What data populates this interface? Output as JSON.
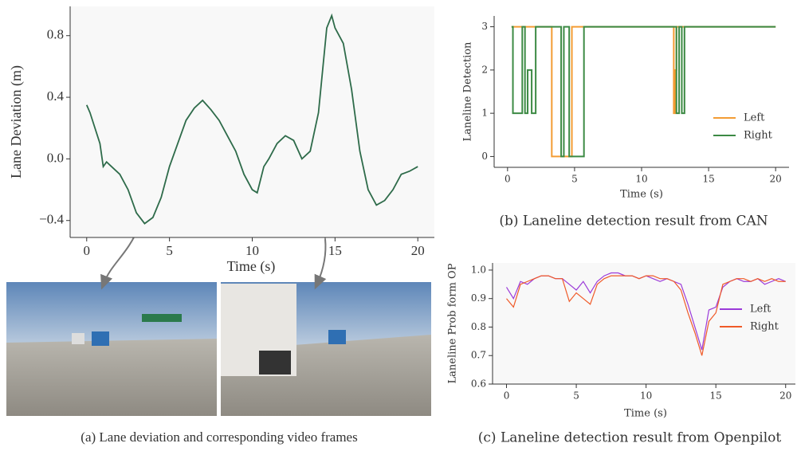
{
  "chart_data": [
    {
      "type": "line",
      "xlabel": "Time (s)",
      "ylabel": "Lane Deviation (m)",
      "caption": "(a) Lane deviation and corresponding video frames",
      "x": [
        0,
        0.2,
        0.5,
        0.8,
        1,
        1.2,
        1.5,
        2,
        2.5,
        3,
        3.5,
        4,
        4.5,
        5,
        5.5,
        6,
        6.5,
        7,
        7.5,
        8,
        8.5,
        9,
        9.5,
        10,
        10.3,
        10.7,
        11,
        11.5,
        12,
        12.5,
        13,
        13.5,
        14,
        14.5,
        14.8,
        15,
        15.5,
        16,
        16.5,
        17,
        17.5,
        18,
        18.5,
        19,
        19.5,
        20
      ],
      "series": [
        {
          "color": "#2e6b4a",
          "values": [
            0.35,
            0.3,
            0.2,
            0.1,
            -0.05,
            -0.02,
            -0.05,
            -0.1,
            -0.2,
            -0.35,
            -0.42,
            -0.38,
            -0.25,
            -0.05,
            0.1,
            0.25,
            0.33,
            0.38,
            0.32,
            0.25,
            0.15,
            0.05,
            -0.1,
            -0.2,
            -0.22,
            -0.05,
            0.0,
            0.1,
            0.15,
            0.12,
            0.0,
            0.05,
            0.3,
            0.85,
            0.93,
            0.85,
            0.75,
            0.45,
            0.05,
            -0.2,
            -0.3,
            -0.27,
            -0.2,
            -0.1,
            -0.08,
            -0.05
          ]
        }
      ],
      "xlim": [
        -1,
        21
      ],
      "ylim": [
        -0.51,
        0.99
      ],
      "xticks": [
        0,
        5,
        10,
        15,
        20
      ],
      "yticks": [
        {
          "value": -0.4,
          "label": "−0.4"
        },
        {
          "value": 0,
          "label": "0.0"
        },
        0.4,
        0.8
      ],
      "background": "#f8f8f8"
    },
    {
      "type": "step",
      "xlabel": "Time (s)",
      "ylabel": "Laneline Detection",
      "caption": "(b) Laneline detection result from CAN",
      "series": [
        {
          "name": "Left",
          "color": "#f39c34",
          "x": [
            0.3,
            3.3,
            4.8,
            12.4,
            12.5,
            12.6,
            20
          ],
          "values": [
            3,
            0,
            3,
            1,
            2,
            3,
            3
          ]
        },
        {
          "name": "Right",
          "color": "#3c8a44",
          "x": [
            0.3,
            0.4,
            1.1,
            1.3,
            1.5,
            1.8,
            2.1,
            4.0,
            4.2,
            4.6,
            5.7,
            12.6,
            12.8,
            13.0,
            13.2,
            20
          ],
          "values": [
            3,
            1,
            3,
            1,
            2,
            1,
            3,
            0,
            3,
            0,
            3,
            1,
            3,
            1,
            3,
            3
          ]
        }
      ],
      "xlim": [
        -1,
        21
      ],
      "ylim": [
        -0.25,
        3.25
      ],
      "xticks": [
        0,
        5,
        10,
        15,
        20
      ],
      "yticks": [
        0,
        1,
        2,
        3
      ],
      "legend": "lower right",
      "background": "#ffffff"
    },
    {
      "type": "line",
      "xlabel": "Time (s)",
      "ylabel": "Laneline Prob form OP",
      "caption": "(c) Laneline detection result from Openpilot",
      "x": [
        0,
        0.5,
        1,
        1.5,
        2,
        2.5,
        3,
        3.5,
        4,
        4.5,
        5,
        5.5,
        6,
        6.5,
        7,
        7.5,
        8,
        8.5,
        9,
        9.5,
        10,
        10.5,
        11,
        11.5,
        12,
        12.5,
        13,
        13.5,
        14,
        14.5,
        15,
        15.5,
        16,
        16.5,
        17,
        17.5,
        18,
        18.5,
        19,
        19.5,
        20
      ],
      "series": [
        {
          "name": "Left",
          "color": "#9b3ad9",
          "values": [
            0.94,
            0.9,
            0.96,
            0.95,
            0.97,
            0.98,
            0.98,
            0.97,
            0.97,
            0.95,
            0.93,
            0.96,
            0.92,
            0.96,
            0.98,
            0.99,
            0.99,
            0.98,
            0.98,
            0.97,
            0.98,
            0.97,
            0.96,
            0.97,
            0.96,
            0.95,
            0.88,
            0.8,
            0.72,
            0.86,
            0.87,
            0.94,
            0.96,
            0.97,
            0.96,
            0.96,
            0.97,
            0.95,
            0.96,
            0.97,
            0.96
          ]
        },
        {
          "name": "Right",
          "color": "#f05a28",
          "values": [
            0.9,
            0.87,
            0.95,
            0.96,
            0.97,
            0.98,
            0.98,
            0.97,
            0.97,
            0.89,
            0.92,
            0.9,
            0.88,
            0.95,
            0.97,
            0.98,
            0.98,
            0.98,
            0.98,
            0.97,
            0.98,
            0.98,
            0.97,
            0.97,
            0.96,
            0.93,
            0.85,
            0.78,
            0.7,
            0.82,
            0.85,
            0.95,
            0.96,
            0.97,
            0.97,
            0.96,
            0.97,
            0.96,
            0.97,
            0.96,
            0.96
          ]
        }
      ],
      "xlim": [
        -1,
        20.7
      ],
      "ylim": [
        0.6,
        1.025
      ],
      "xticks": [
        0,
        5,
        10,
        15,
        20
      ],
      "yticks": [
        0.6,
        0.7,
        0.8,
        0.9,
        {
          "value": 1,
          "label": "1.0"
        }
      ],
      "legend": "center right",
      "background": "#f8f8f8"
    }
  ]
}
